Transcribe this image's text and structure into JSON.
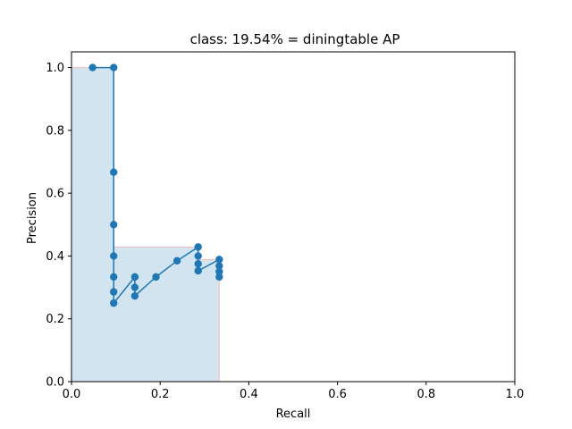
{
  "chart_data": {
    "type": "line",
    "title": "class: 19.54% = diningtable AP",
    "xlabel": "Recall",
    "ylabel": "Precision",
    "xlim": [
      0.0,
      1.0
    ],
    "ylim": [
      0.0,
      1.05
    ],
    "xticks": [
      "0.0",
      "0.2",
      "0.4",
      "0.6",
      "0.8",
      "1.0"
    ],
    "yticks": [
      "0.0",
      "0.2",
      "0.4",
      "0.6",
      "0.8",
      "1.0"
    ],
    "grid": false,
    "series": [
      {
        "kind": "markers-line",
        "color": "#1f77b4",
        "x": [
          0.0476,
          0.0952,
          0.0952,
          0.0952,
          0.0952,
          0.0952,
          0.0952,
          0.0952,
          0.1429,
          0.1429,
          0.1429,
          0.1905,
          0.2381,
          0.2857,
          0.2857,
          0.2857,
          0.2857,
          0.3333,
          0.3333,
          0.3333,
          0.3333
        ],
        "y": [
          1.0,
          1.0,
          0.6667,
          0.5,
          0.4,
          0.3333,
          0.2857,
          0.25,
          0.3333,
          0.3,
          0.2727,
          0.3333,
          0.3846,
          0.4286,
          0.4,
          0.375,
          0.3529,
          0.3889,
          0.3684,
          0.35,
          0.3333
        ]
      },
      {
        "kind": "interpolated-area",
        "fill_color": "#1f77b4",
        "edge_color": "#ff9999",
        "x": [
          0.0,
          0.0,
          0.0952,
          0.0952,
          0.2857,
          0.2857,
          0.3333,
          0.3333
        ],
        "y": [
          0.0,
          1.0,
          1.0,
          0.4286,
          0.4286,
          0.3889,
          0.3889,
          0.0
        ]
      }
    ]
  }
}
